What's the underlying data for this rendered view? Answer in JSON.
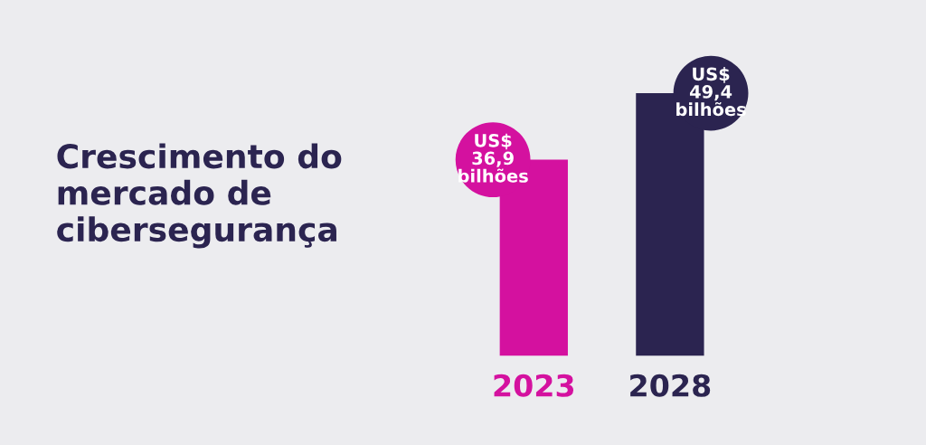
{
  "chart_data": {
    "type": "bar",
    "title": "Crescimento do mercado de cibersegurança",
    "categories": [
      "2023",
      "2028"
    ],
    "values": [
      36.9,
      49.4
    ],
    "colors": [
      "#d4119f",
      "#2b2450"
    ],
    "value_labels": [
      "US$\n36,9\nbilhões",
      "US$\n49,4\nbilhões"
    ],
    "grid": false,
    "legend": false,
    "tick_labels": "x"
  }
}
